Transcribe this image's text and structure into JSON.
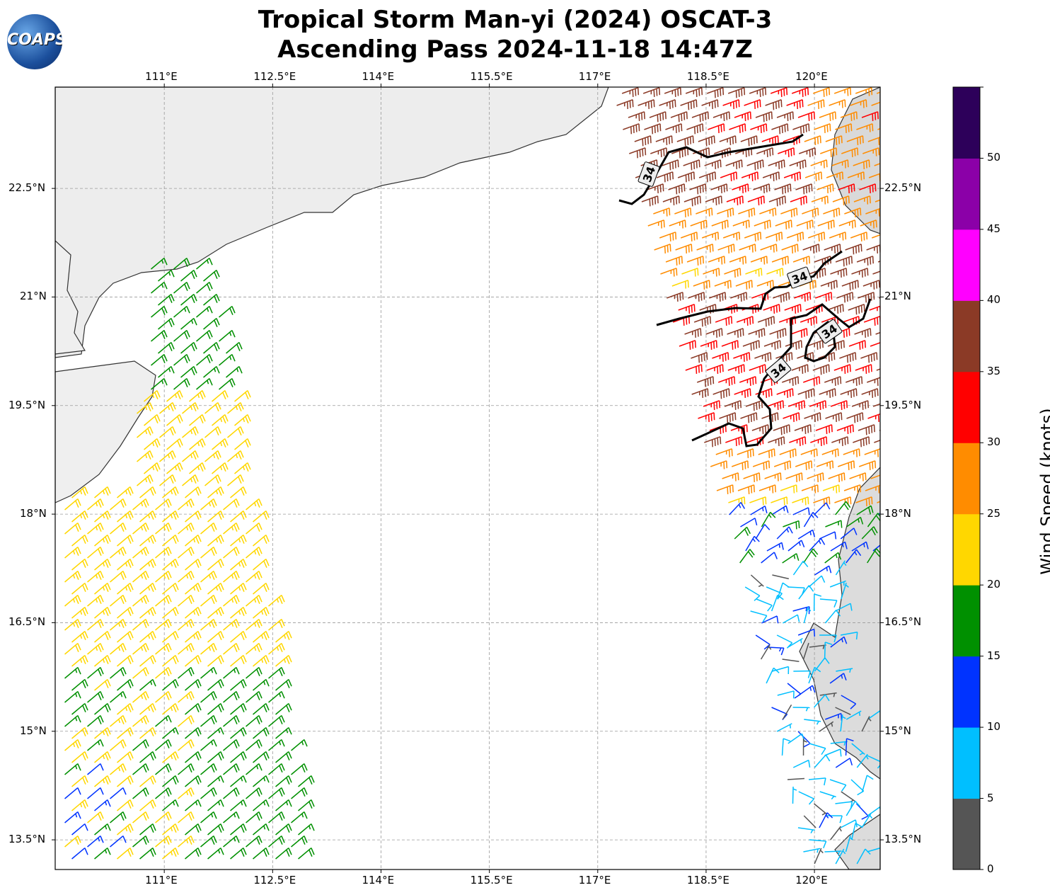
{
  "title": {
    "line1": "Tropical Storm Man-yi (2024) OSCAT-3",
    "line2": "Ascending Pass 2024-11-18 14:47Z"
  },
  "logo": {
    "text": "COAPS"
  },
  "axes": {
    "lon_ticks": [
      "111°E",
      "112.5°E",
      "114°E",
      "115.5°E",
      "117°E",
      "118.5°E",
      "120°E"
    ],
    "lon_values": [
      111,
      112.5,
      114,
      115.5,
      117,
      118.5,
      120
    ],
    "lat_ticks": [
      "22.5°N",
      "21°N",
      "19.5°N",
      "18°N",
      "16.5°N",
      "15°N",
      "13.5°N"
    ],
    "lat_values": [
      22.5,
      21,
      19.5,
      18,
      16.5,
      15,
      13.5
    ],
    "lon_range": [
      109.49,
      120.91
    ],
    "lat_range": [
      13.09,
      23.9
    ]
  },
  "contour": {
    "label": "34",
    "level_knots": 34
  },
  "colorbar": {
    "label": "Wind Speed (knots)",
    "ticks": [
      "0",
      "5",
      "10",
      "15",
      "20",
      "25",
      "30",
      "35",
      "40",
      "45",
      "50"
    ],
    "range": [
      0,
      55
    ],
    "colors": [
      "#555555",
      "#00bfff",
      "#0033ff",
      "#009000",
      "#ffd700",
      "#ff8c00",
      "#ff0000",
      "#8b3a26",
      "#ff00ff",
      "#8b00a8",
      "#2d005a"
    ]
  }
}
